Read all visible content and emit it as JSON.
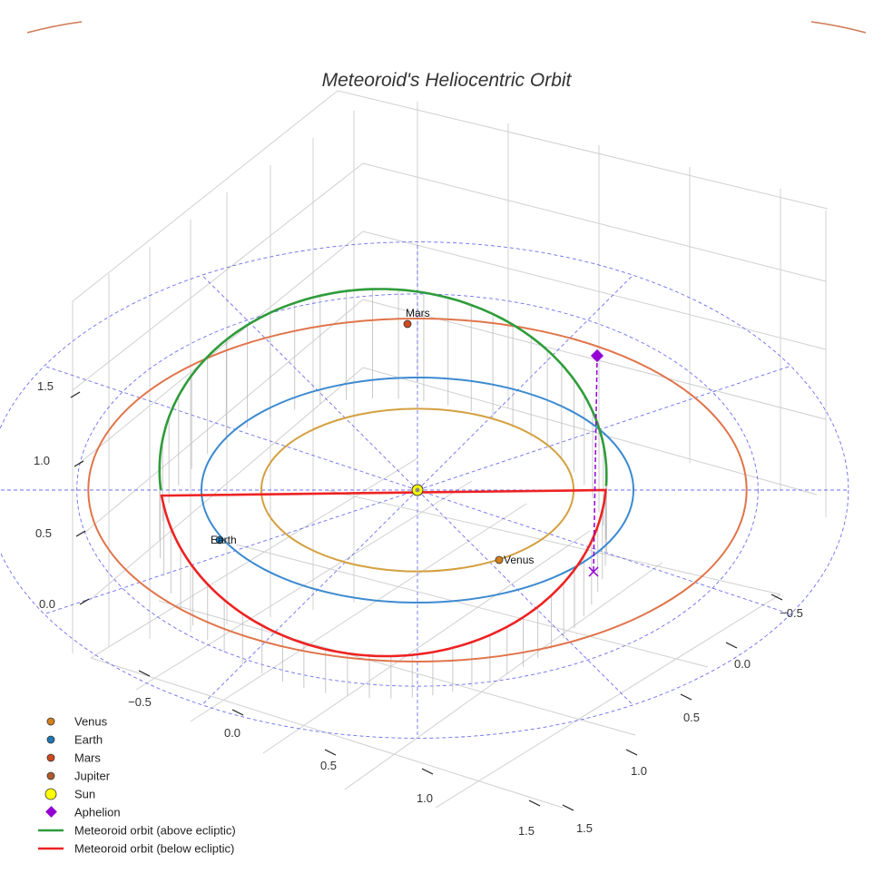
{
  "chart_data": {
    "type": "scatter",
    "projection": "3d",
    "title": "Meteoroid's Heliocentric Orbit",
    "units": "AU",
    "axes": {
      "x_ticks": [
        "−0.5",
        "0.0",
        "0.5",
        "1.0",
        "1.5"
      ],
      "y_ticks": [
        "−0.5",
        "0.0",
        "0.5",
        "1.0",
        "1.5"
      ],
      "z_ticks": [
        "0.0",
        "0.5",
        "1.0",
        "1.5"
      ],
      "grid": true
    },
    "reference_grid": {
      "style": "dashed",
      "color": "#5555ee",
      "radii_au": [
        1.66,
        2.1
      ]
    },
    "planet_orbits": [
      {
        "name": "Venus",
        "radius_au": 0.723,
        "color": "#d4a040"
      },
      {
        "name": "Earth",
        "radius_au": 1.0,
        "color": "#3c8ad0"
      },
      {
        "name": "Mars",
        "radius_au": 1.524,
        "color": "#e0744a"
      }
    ],
    "planets": [
      {
        "name": "Venus",
        "label": "Venus",
        "color": "#d4801e"
      },
      {
        "name": "Earth",
        "label": "Earth",
        "color": "#1f77b4"
      },
      {
        "name": "Mars",
        "label": "Mars",
        "color": "#d2491e"
      },
      {
        "name": "Jupiter",
        "label": "",
        "color": "#b45a2a"
      }
    ],
    "sun": {
      "name": "Sun",
      "color": "#ffff00"
    },
    "aphelion": {
      "name": "Aphelion",
      "color": "#9400d3"
    },
    "meteoroid_orbit": {
      "semi_major_axis_au": 0.99,
      "eccentricity": 0.18,
      "above_color": "#2e9c3a",
      "below_color": "#ee2222"
    },
    "legend": {
      "position": "bottom-left",
      "entries": [
        {
          "label": "Venus",
          "marker": "circle",
          "color": "#d4801e"
        },
        {
          "label": "Earth",
          "marker": "circle",
          "color": "#1f77b4"
        },
        {
          "label": "Mars",
          "marker": "circle",
          "color": "#d2491e"
        },
        {
          "label": "Jupiter",
          "marker": "circle",
          "color": "#b45a2a"
        },
        {
          "label": "Sun",
          "marker": "circle-large",
          "color": "#ffff00"
        },
        {
          "label": "Aphelion",
          "marker": "diamond",
          "color": "#9400d3"
        },
        {
          "label": "Meteoroid orbit (above ecliptic)",
          "marker": "line",
          "color": "#2e9c3a"
        },
        {
          "label": "Meteoroid orbit (below ecliptic)",
          "marker": "line",
          "color": "#ee2222"
        }
      ]
    }
  }
}
